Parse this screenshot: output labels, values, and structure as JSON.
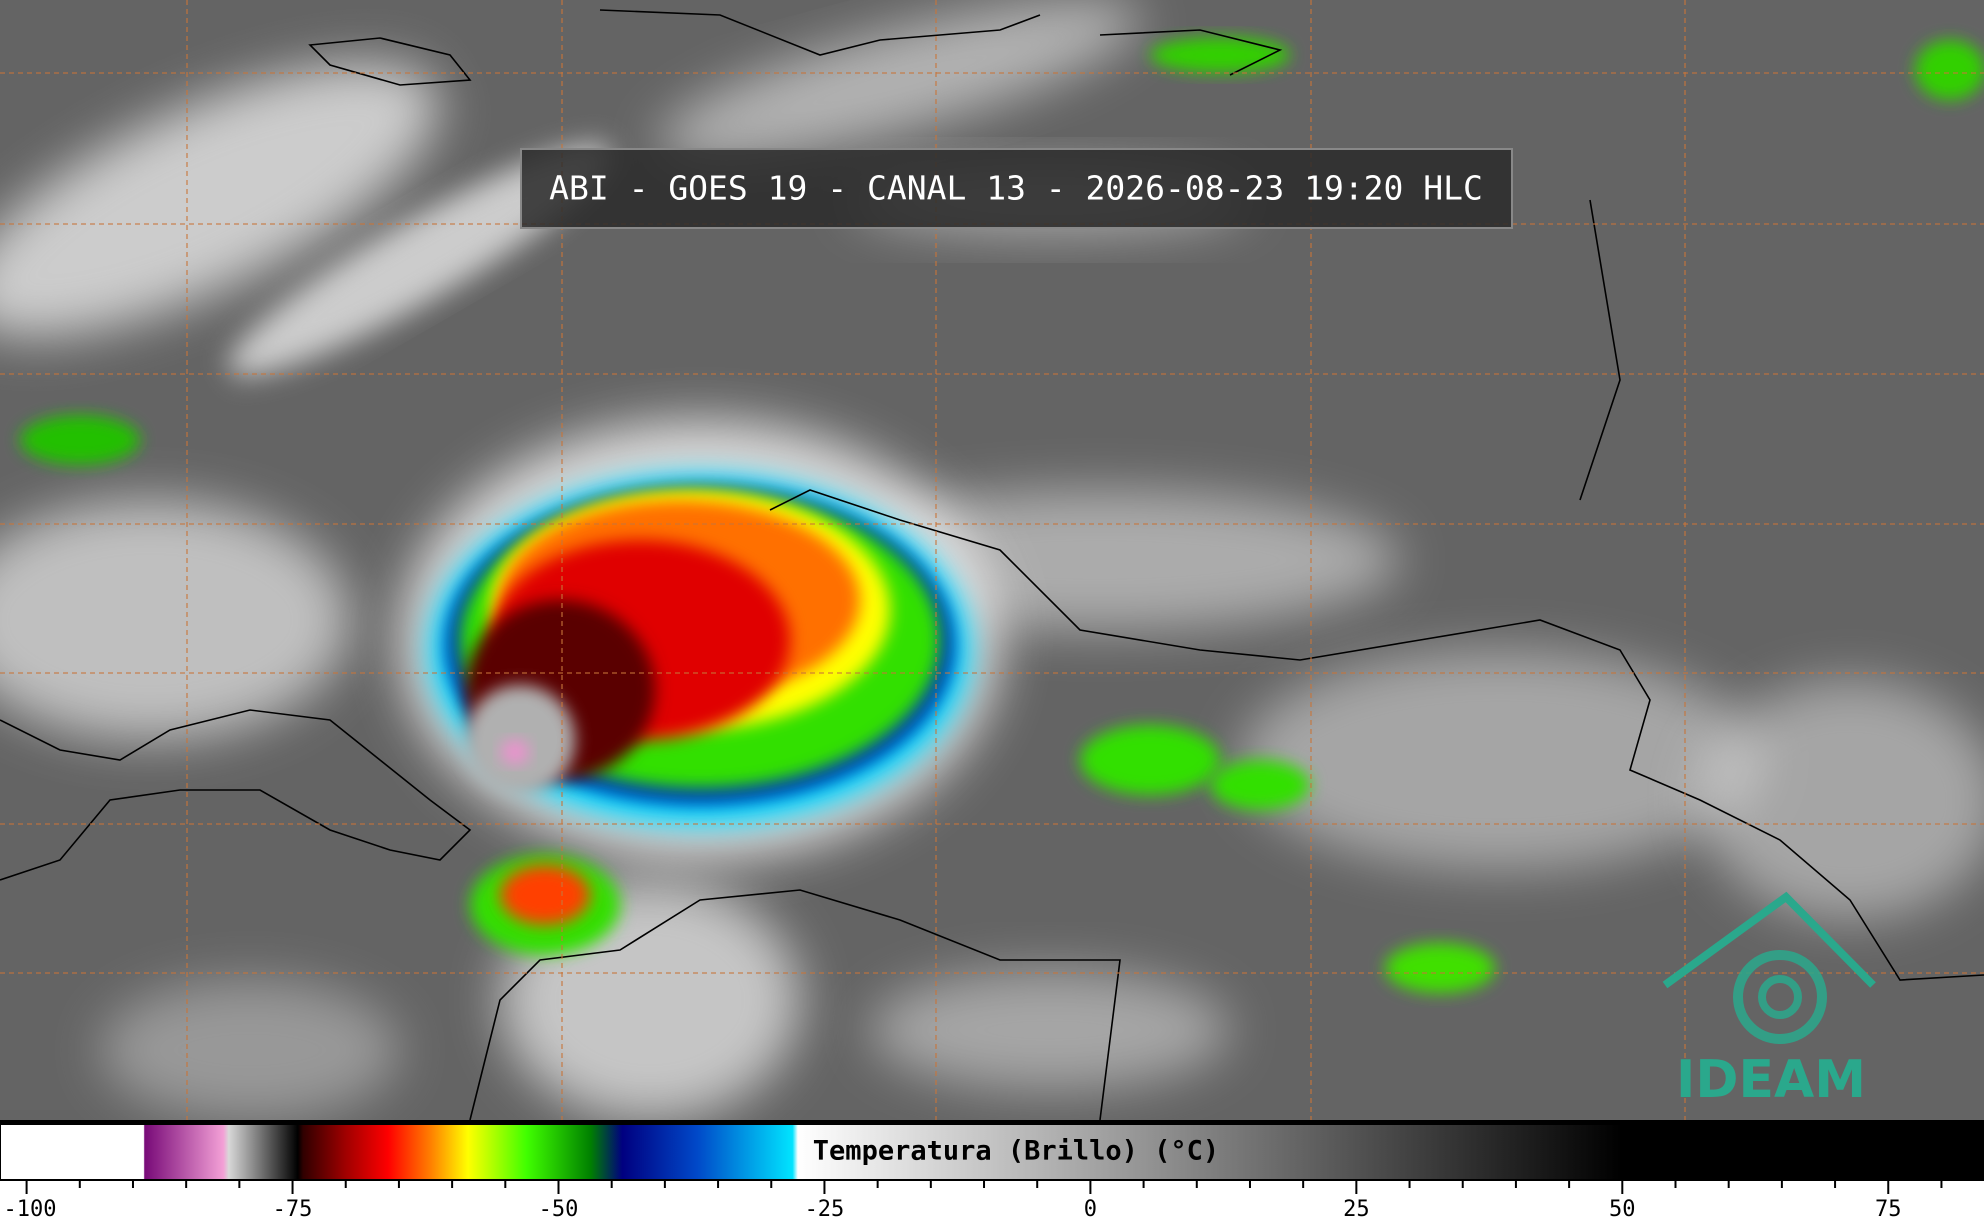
{
  "header": {
    "title": "ABI - GOES 19 - CANAL 13 - 2026-08-23 19:20 HLC"
  },
  "colorbar": {
    "label": "Temperatura (Brillo) (°C)",
    "lim": [
      -102.5,
      84
    ],
    "ticks": [
      -100,
      -75,
      -50,
      -25,
      0,
      25,
      50,
      75
    ],
    "minor_ticks": [
      -95,
      -90,
      -85,
      -80,
      -70,
      -65,
      -60,
      -55,
      -45,
      -40,
      -35,
      -30,
      -20,
      -15,
      -10,
      -5,
      5,
      10,
      15,
      20,
      30,
      35,
      40,
      45,
      55,
      60,
      65,
      70,
      80
    ],
    "colormap": [
      {
        "value": -102.5,
        "color": "#ffffff"
      },
      {
        "value": -89,
        "color": "#ffffff"
      },
      {
        "value": -88.9,
        "color": "#780a78"
      },
      {
        "value": -81.5,
        "color": "#f3a0d6"
      },
      {
        "value": -81,
        "color": "#d8d8d8"
      },
      {
        "value": -74.5,
        "color": "#000000"
      },
      {
        "value": -74,
        "color": "#300000"
      },
      {
        "value": -70,
        "color": "#a00000"
      },
      {
        "value": -66,
        "color": "#ff0000"
      },
      {
        "value": -62,
        "color": "#ff8000"
      },
      {
        "value": -58.5,
        "color": "#ffff00"
      },
      {
        "value": -53,
        "color": "#40ff00"
      },
      {
        "value": -47,
        "color": "#008000"
      },
      {
        "value": -44,
        "color": "#000080"
      },
      {
        "value": -37,
        "color": "#0048c8"
      },
      {
        "value": -28,
        "color": "#00e4ff"
      },
      {
        "value": -27.5,
        "color": "#ffffff"
      },
      {
        "value": 50,
        "color": "#000000"
      },
      {
        "value": 84,
        "color": "#000000"
      }
    ]
  },
  "logo": {
    "text": "IDEAM"
  }
}
